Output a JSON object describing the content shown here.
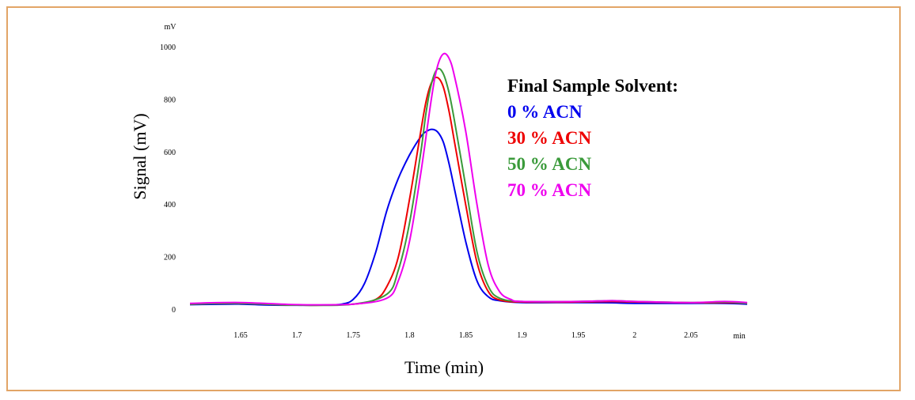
{
  "chart_data": {
    "type": "line",
    "xlabel": "Time (min)",
    "ylabel": "Signal (mV)",
    "x_unit": "min",
    "y_unit": "mV",
    "xlim": [
      1.605,
      2.1
    ],
    "ylim": [
      0,
      1000
    ],
    "x_ticks": [
      1.65,
      1.7,
      1.75,
      1.8,
      1.85,
      1.9,
      1.95,
      2,
      2.05
    ],
    "x_tick_labels": [
      "1.65",
      "1.7",
      "1.75",
      "1.8",
      "1.85",
      "1.9",
      "1.95",
      "2",
      "2.05"
    ],
    "y_ticks": [
      0,
      200,
      400,
      600,
      800,
      1000
    ],
    "y_tick_labels": [
      "0",
      "200",
      "400",
      "600",
      "800",
      "1000"
    ],
    "grid": false,
    "legend": {
      "title": "Final Sample Solvent:",
      "placement": "top-right"
    },
    "series": [
      {
        "name": "0 % ACN",
        "color": "#0000ee",
        "x": [
          1.605,
          1.64,
          1.65,
          1.68,
          1.72,
          1.74,
          1.75,
          1.76,
          1.77,
          1.78,
          1.79,
          1.8,
          1.81,
          1.815,
          1.82,
          1.825,
          1.83,
          1.835,
          1.84,
          1.85,
          1.86,
          1.87,
          1.88,
          1.9,
          1.95,
          1.98,
          2.0,
          2.05,
          2.08,
          2.1
        ],
        "y": [
          20,
          22,
          22,
          18,
          18,
          22,
          40,
          100,
          220,
          380,
          500,
          590,
          660,
          680,
          688,
          678,
          640,
          560,
          460,
          260,
          110,
          50,
          35,
          28,
          28,
          27,
          25,
          25,
          25,
          22
        ]
      },
      {
        "name": "30 % ACN",
        "color": "#ee0000",
        "x": [
          1.605,
          1.65,
          1.7,
          1.75,
          1.77,
          1.78,
          1.79,
          1.8,
          1.81,
          1.815,
          1.82,
          1.825,
          1.83,
          1.835,
          1.84,
          1.85,
          1.86,
          1.87,
          1.88,
          1.9,
          1.95,
          1.98,
          2.0,
          2.05,
          2.08,
          2.1
        ],
        "y": [
          22,
          25,
          18,
          22,
          40,
          90,
          200,
          420,
          680,
          800,
          870,
          885,
          850,
          760,
          640,
          400,
          180,
          70,
          38,
          30,
          30,
          32,
          30,
          27,
          28,
          25
        ]
      },
      {
        "name": "50 % ACN",
        "color": "#3a9a3a",
        "x": [
          1.605,
          1.65,
          1.7,
          1.75,
          1.78,
          1.79,
          1.8,
          1.81,
          1.815,
          1.82,
          1.825,
          1.83,
          1.835,
          1.84,
          1.85,
          1.86,
          1.87,
          1.88,
          1.9,
          1.95,
          1.98,
          2.0,
          2.05,
          2.08,
          2.1
        ],
        "y": [
          22,
          25,
          18,
          22,
          60,
          150,
          330,
          600,
          760,
          870,
          918,
          900,
          830,
          720,
          470,
          220,
          90,
          45,
          32,
          32,
          35,
          32,
          28,
          30,
          25
        ]
      },
      {
        "name": "70 % ACN",
        "color": "#ee00ee",
        "x": [
          1.605,
          1.65,
          1.7,
          1.75,
          1.78,
          1.79,
          1.8,
          1.81,
          1.82,
          1.825,
          1.83,
          1.835,
          1.84,
          1.85,
          1.86,
          1.87,
          1.88,
          1.89,
          1.9,
          1.95,
          1.98,
          2.0,
          2.05,
          2.08,
          2.1
        ],
        "y": [
          25,
          28,
          20,
          22,
          45,
          110,
          260,
          520,
          820,
          930,
          975,
          960,
          890,
          680,
          400,
          170,
          70,
          40,
          32,
          32,
          35,
          32,
          28,
          32,
          28
        ]
      }
    ]
  }
}
